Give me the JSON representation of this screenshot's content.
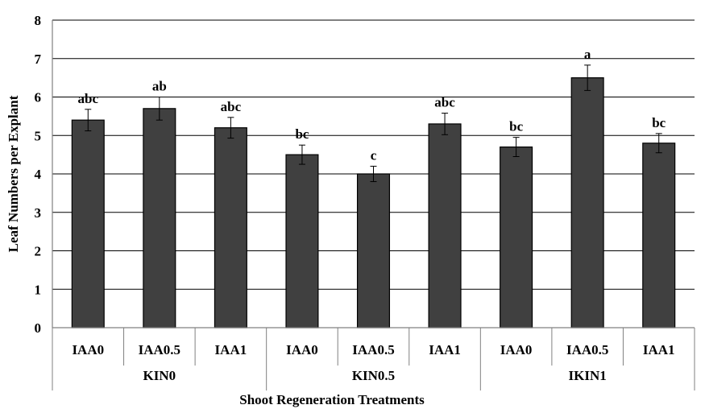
{
  "chart_data": {
    "type": "bar",
    "ylabel": "Leaf Numbers per Explant",
    "xlabel": "Shoot Regeneration Treatments",
    "ylim": [
      0,
      8
    ],
    "yticks": [
      "0",
      "1",
      "2",
      "3",
      "4",
      "5",
      "6",
      "7",
      "8"
    ],
    "grid": true,
    "colors": {
      "bar": "#404040",
      "bar_edge": "#000000",
      "grid": "#000000",
      "axis": "#808080"
    },
    "groups": [
      {
        "label": "KIN0",
        "categories": [
          "IAA0",
          "IAA0.5",
          "IAA1"
        ]
      },
      {
        "label": "KIN0.5",
        "categories": [
          "IAA0",
          "IAA0.5",
          "IAA1"
        ]
      },
      {
        "label": "IKIN1",
        "categories": [
          "IAA0",
          "IAA0.5",
          "IAA1"
        ]
      }
    ],
    "values": [
      5.4,
      5.7,
      5.2,
      4.5,
      4.0,
      5.3,
      4.7,
      6.5,
      4.8
    ],
    "errors": [
      0.28,
      0.3,
      0.27,
      0.25,
      0.2,
      0.28,
      0.25,
      0.33,
      0.25
    ],
    "letters": [
      "abc",
      "ab",
      "abc",
      "bc",
      "c",
      "abc",
      "bc",
      "a",
      "bc"
    ]
  }
}
